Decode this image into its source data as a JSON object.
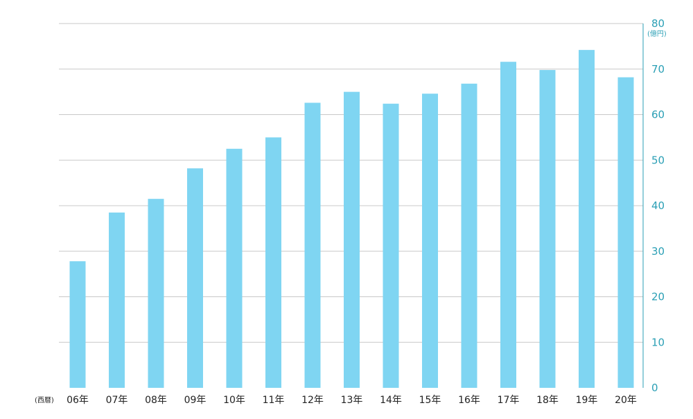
{
  "chart_data": {
    "type": "bar",
    "title": "",
    "xlabel": "(西暦)",
    "ylabel": "(億円)",
    "categories": [
      "06年",
      "07年",
      "08年",
      "09年",
      "10年",
      "11年",
      "12年",
      "13年",
      "14年",
      "15年",
      "16年",
      "17年",
      "18年",
      "19年",
      "20年"
    ],
    "values": [
      27.8,
      38.5,
      41.5,
      48.2,
      52.5,
      55,
      62.6,
      65,
      62.4,
      64.6,
      66.8,
      71.6,
      69.8,
      74.2,
      68.2
    ],
    "ylim": [
      0,
      80
    ],
    "yticks": [
      0,
      10,
      20,
      30,
      40,
      50,
      60,
      70,
      80
    ],
    "y_axis_position": "right",
    "grid": true,
    "colors": {
      "bar": "#7fd5f2",
      "axis": "#2a9fb5",
      "grid": "#c8c8c8",
      "tick_text": "#2a9fb5",
      "category_text": "#222222"
    }
  }
}
